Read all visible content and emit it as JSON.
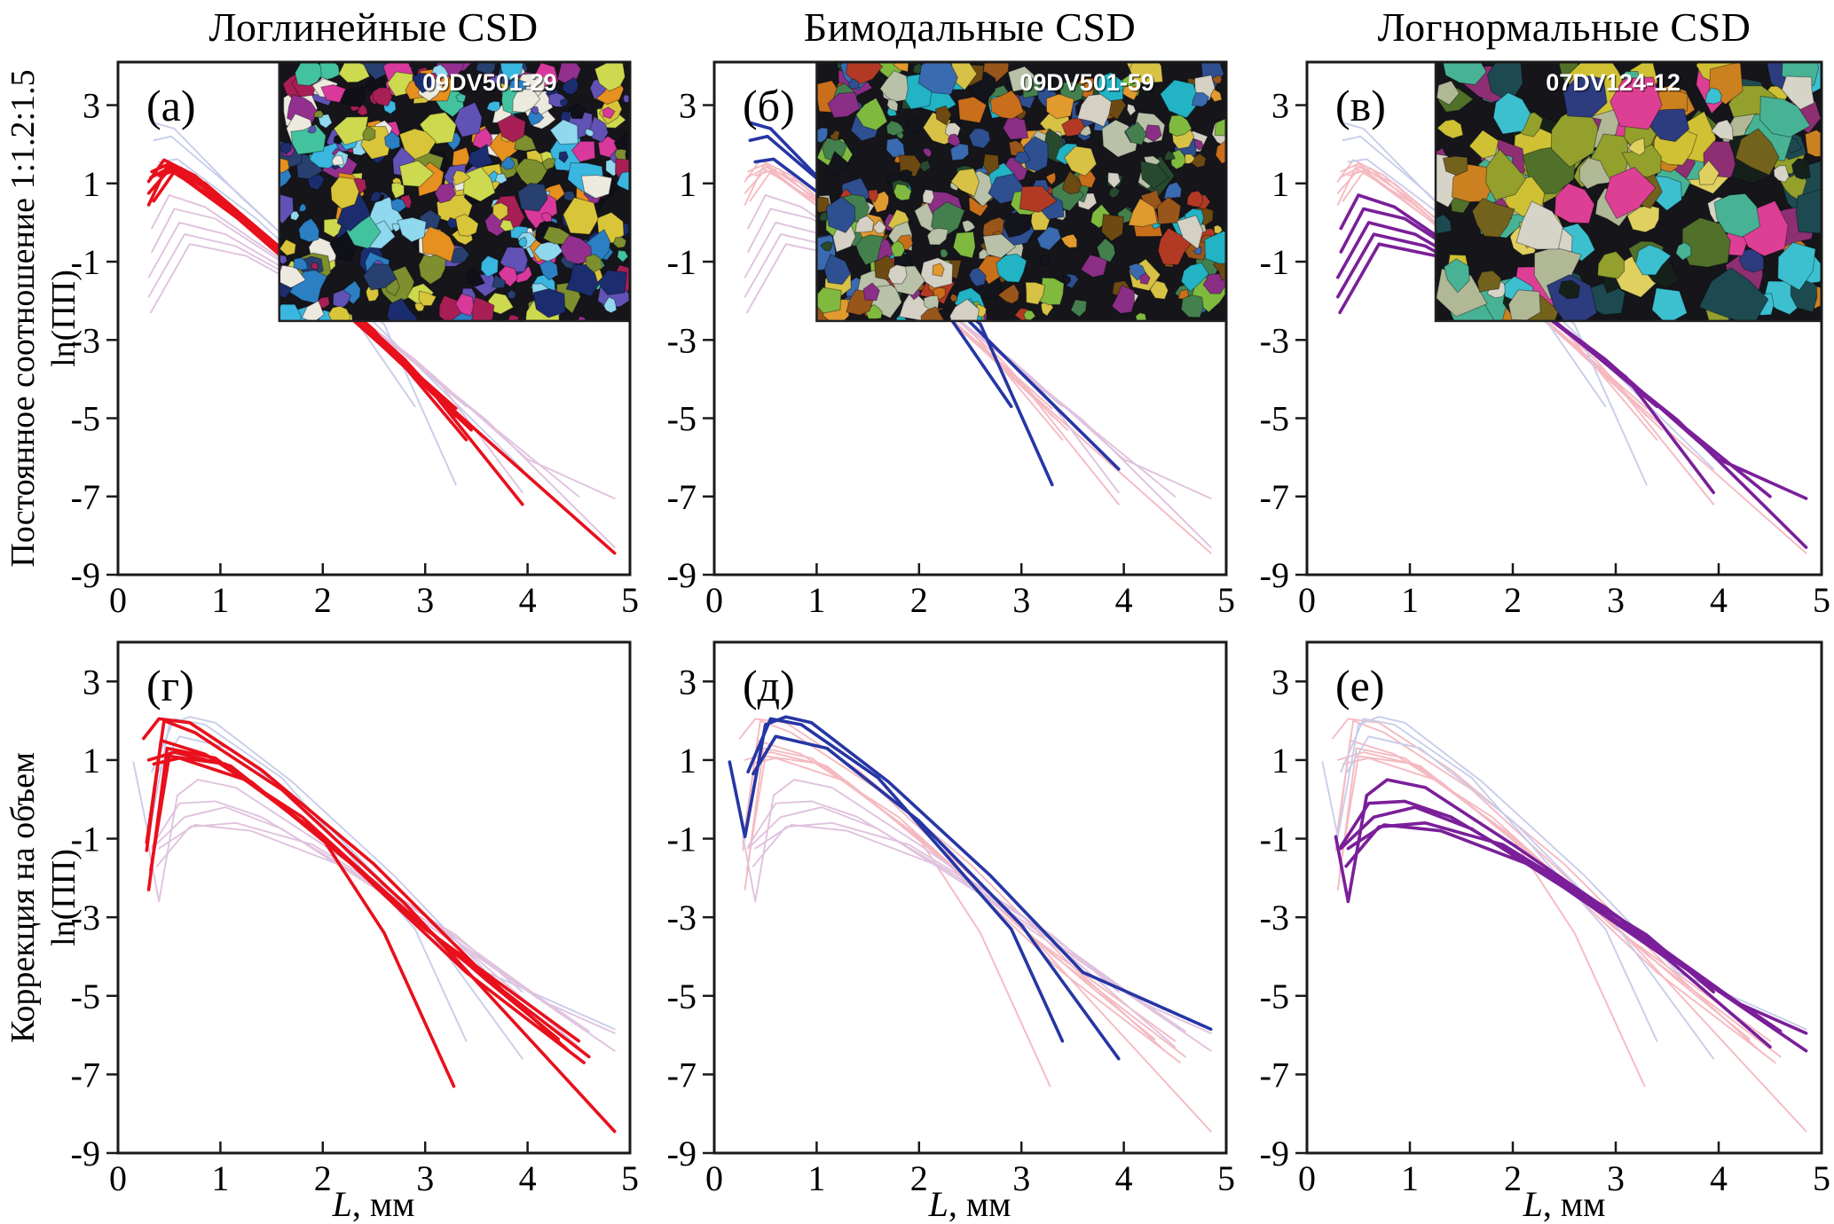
{
  "figure": {
    "column_titles": [
      "Логлинейные CSD",
      "Бимодальные CSD",
      "Логнормальные CSD"
    ],
    "row_labels": [
      "Постоянное соотношение 1:1.2:1.5",
      "Коррекция на объем"
    ],
    "ylabel": "ln(ПП)",
    "xlabel": "L, мм",
    "panel_letters": [
      "(а)",
      "(б)",
      "(в)",
      "(г)",
      "(д)",
      "(е)"
    ],
    "inset_labels": [
      "09DV501-29",
      "09DV501-59",
      "07DV124-12"
    ]
  },
  "colors": {
    "background": "#ffffff",
    "axis": "#1a1a1a",
    "bold": {
      "loglinear": "#e8101c",
      "bimodal": "#2636a4",
      "lognormal": "#7a1f99"
    },
    "faint": {
      "loglinear": "#f5bac1",
      "bimodal": "#c8cdea",
      "lognormal": "#e0c2de"
    },
    "inset_label": "#ffffff",
    "inset_background": "#15151a"
  },
  "chart_data": {
    "type": "line",
    "xlabel": "L, мм",
    "ylabel": "ln(ПП)",
    "xlim": [
      0,
      5
    ],
    "ylim": [
      -9,
      4.1
    ],
    "xticks": [
      0,
      1,
      2,
      3,
      4,
      5
    ],
    "yticks": [
      3,
      1,
      -1,
      -3,
      -5,
      -7,
      -9
    ],
    "grid": false,
    "legend": "none",
    "rows": [
      {
        "name": "Постоянное соотношение 1:1.2:1.5",
        "series": {
          "loglinear": [
            [
              [
                0.3,
                1.05
              ],
              [
                0.45,
                1.6
              ],
              [
                0.75,
                1.2
              ],
              [
                1.5,
                -0.45
              ],
              [
                2.5,
                -2.75
              ],
              [
                3.4,
                -5.55
              ]
            ],
            [
              [
                0.3,
                0.45
              ],
              [
                0.48,
                1.45
              ],
              [
                0.85,
                1.0
              ],
              [
                1.7,
                -0.9
              ],
              [
                2.8,
                -3.5
              ],
              [
                3.3,
                -4.95
              ]
            ],
            [
              [
                0.33,
                1.3
              ],
              [
                0.5,
                1.5
              ],
              [
                0.95,
                0.7
              ],
              [
                2.0,
                -1.75
              ],
              [
                3.0,
                -4.1
              ],
              [
                3.95,
                -7.2
              ]
            ],
            [
              [
                0.3,
                0.75
              ],
              [
                0.5,
                1.35
              ],
              [
                1.05,
                0.45
              ],
              [
                2.2,
                -2.2
              ],
              [
                3.3,
                -4.75
              ]
            ],
            [
              [
                0.32,
                1.15
              ],
              [
                0.52,
                1.42
              ],
              [
                1.15,
                0.15
              ],
              [
                2.4,
                -2.7
              ],
              [
                3.45,
                -5.3
              ]
            ],
            [
              [
                0.35,
                0.55
              ],
              [
                0.55,
                1.3
              ],
              [
                1.25,
                -0.05
              ],
              [
                2.6,
                -3.2
              ],
              [
                3.35,
                -5.05
              ]
            ],
            [
              [
                0.4,
                1.2
              ],
              [
                0.62,
                1.38
              ],
              [
                1.5,
                -0.55
              ],
              [
                3.0,
                -4.15
              ],
              [
                4.85,
                -8.45
              ]
            ]
          ],
          "bimodal": [
            [
              [
                0.35,
                2.55
              ],
              [
                0.55,
                2.4
              ],
              [
                1.2,
                0.65
              ],
              [
                2.0,
                -1.25
              ],
              [
                3.0,
                -3.85
              ],
              [
                3.95,
                -6.3
              ]
            ],
            [
              [
                0.35,
                2.1
              ],
              [
                0.52,
                2.2
              ],
              [
                1.15,
                0.8
              ],
              [
                1.95,
                -1.15
              ],
              [
                2.6,
                -2.6
              ],
              [
                3.3,
                -6.7
              ]
            ],
            [
              [
                0.4,
                1.55
              ],
              [
                0.58,
                1.62
              ],
              [
                1.35,
                0.1
              ],
              [
                2.15,
                -1.85
              ],
              [
                2.9,
                -4.7
              ]
            ]
          ],
          "lognormal": [
            [
              [
                0.33,
                -0.15
              ],
              [
                0.5,
                0.7
              ],
              [
                0.85,
                0.4
              ],
              [
                1.6,
                -0.95
              ],
              [
                2.6,
                -2.95
              ],
              [
                3.6,
                -5.05
              ],
              [
                4.85,
                -8.3
              ]
            ],
            [
              [
                0.33,
                -0.75
              ],
              [
                0.55,
                0.35
              ],
              [
                0.95,
                0.1
              ],
              [
                1.8,
                -1.35
              ],
              [
                2.9,
                -3.5
              ],
              [
                4.0,
                -6.05
              ],
              [
                4.85,
                -7.05
              ]
            ],
            [
              [
                0.3,
                -1.4
              ],
              [
                0.6,
                0.0
              ],
              [
                1.05,
                -0.3
              ],
              [
                2.0,
                -1.75
              ],
              [
                3.1,
                -3.95
              ],
              [
                3.95,
                -6.9
              ]
            ],
            [
              [
                0.3,
                -1.9
              ],
              [
                0.65,
                -0.3
              ],
              [
                1.15,
                -0.6
              ],
              [
                2.2,
                -2.1
              ],
              [
                3.3,
                -4.45
              ],
              [
                4.5,
                -7.0
              ]
            ],
            [
              [
                0.32,
                -2.3
              ],
              [
                0.7,
                -0.55
              ],
              [
                1.25,
                -0.85
              ],
              [
                2.4,
                -2.5
              ],
              [
                3.4,
                -4.7
              ]
            ]
          ]
        }
      },
      {
        "name": "Коррекция на объем",
        "series": {
          "loglinear": [
            [
              [
                0.25,
                1.55
              ],
              [
                0.4,
                2.05
              ],
              [
                0.7,
                1.95
              ],
              [
                1.4,
                0.75
              ],
              [
                2.5,
                -1.65
              ],
              [
                3.5,
                -4.25
              ],
              [
                4.4,
                -6.4
              ]
            ],
            [
              [
                0.28,
                -1.1
              ],
              [
                0.45,
                2.0
              ],
              [
                0.75,
                1.7
              ],
              [
                1.6,
                0.25
              ],
              [
                2.8,
                -2.65
              ],
              [
                4.85,
                -8.45
              ]
            ],
            [
              [
                0.28,
                -1.3
              ],
              [
                0.42,
                1.5
              ],
              [
                0.85,
                1.15
              ],
              [
                1.8,
                -0.45
              ],
              [
                3.0,
                -3.3
              ],
              [
                4.5,
                -6.15
              ]
            ],
            [
              [
                0.3,
                -2.3
              ],
              [
                0.48,
                1.3
              ],
              [
                0.95,
                1.05
              ],
              [
                2.0,
                -0.95
              ],
              [
                3.3,
                -3.95
              ],
              [
                4.6,
                -6.55
              ]
            ],
            [
              [
                0.3,
                1.0
              ],
              [
                0.55,
                1.2
              ],
              [
                1.1,
                0.85
              ],
              [
                2.0,
                -1.0
              ],
              [
                2.6,
                -3.4
              ],
              [
                3.28,
                -7.3
              ]
            ],
            [
              [
                0.32,
                -1.8
              ],
              [
                0.5,
                1.1
              ],
              [
                1.05,
                0.9
              ],
              [
                2.1,
                -1.2
              ],
              [
                3.4,
                -4.4
              ],
              [
                4.55,
                -6.7
              ]
            ],
            [
              [
                0.35,
                0.9
              ],
              [
                0.6,
                1.05
              ],
              [
                1.3,
                0.45
              ],
              [
                2.4,
                -1.9
              ],
              [
                3.6,
                -4.6
              ],
              [
                4.3,
                -6.1
              ]
            ]
          ],
          "bimodal": [
            [
              [
                0.15,
                0.95
              ],
              [
                0.3,
                -0.95
              ],
              [
                0.5,
                1.9
              ],
              [
                0.7,
                2.1
              ],
              [
                0.95,
                1.95
              ],
              [
                1.7,
                0.45
              ],
              [
                2.7,
                -1.95
              ],
              [
                3.6,
                -4.4
              ],
              [
                4.85,
                -5.85
              ]
            ],
            [
              [
                0.33,
                0.7
              ],
              [
                0.55,
                2.05
              ],
              [
                0.85,
                1.9
              ],
              [
                1.6,
                0.55
              ],
              [
                2.9,
                -3.3
              ],
              [
                3.4,
                -6.15
              ]
            ],
            [
              [
                0.38,
                0.65
              ],
              [
                0.6,
                1.6
              ],
              [
                1.1,
                1.3
              ],
              [
                2.0,
                -0.55
              ],
              [
                3.0,
                -3.2
              ],
              [
                3.95,
                -6.6
              ]
            ]
          ],
          "lognormal": [
            [
              [
                0.28,
                -0.95
              ],
              [
                0.4,
                -2.6
              ],
              [
                0.58,
                0.1
              ],
              [
                0.78,
                0.5
              ],
              [
                1.15,
                0.3
              ],
              [
                2.0,
                -1.15
              ],
              [
                3.0,
                -2.95
              ],
              [
                4.2,
                -5.2
              ],
              [
                4.85,
                -5.95
              ]
            ],
            [
              [
                0.33,
                -1.2
              ],
              [
                0.6,
                -0.1
              ],
              [
                0.95,
                -0.05
              ],
              [
                1.4,
                -0.45
              ],
              [
                2.3,
                -1.85
              ],
              [
                3.3,
                -3.6
              ],
              [
                4.6,
                -5.9
              ]
            ],
            [
              [
                0.33,
                -1.25
              ],
              [
                0.65,
                -0.45
              ],
              [
                1.05,
                -0.2
              ],
              [
                1.6,
                -0.75
              ],
              [
                2.5,
                -2.25
              ],
              [
                3.5,
                -4.05
              ],
              [
                4.5,
                -6.3
              ]
            ],
            [
              [
                0.38,
                -1.7
              ],
              [
                0.7,
                -0.7
              ],
              [
                1.15,
                -0.6
              ],
              [
                1.9,
                -1.15
              ],
              [
                2.9,
                -2.75
              ],
              [
                3.45,
                -3.9
              ],
              [
                4.85,
                -6.4
              ]
            ],
            [
              [
                0.4,
                -1.25
              ],
              [
                0.75,
                -0.65
              ],
              [
                1.3,
                -0.8
              ],
              [
                2.2,
                -1.7
              ],
              [
                3.3,
                -3.45
              ],
              [
                3.95,
                -4.9
              ]
            ]
          ]
        }
      }
    ],
    "panels": [
      {
        "letter": "(а)",
        "row": 0,
        "col": 0,
        "bold_group": "loglinear",
        "inset_label": "09DV501-29"
      },
      {
        "letter": "(б)",
        "row": 0,
        "col": 1,
        "bold_group": "bimodal",
        "inset_label": "09DV501-59"
      },
      {
        "letter": "(в)",
        "row": 0,
        "col": 2,
        "bold_group": "lognormal",
        "inset_label": "07DV124-12"
      },
      {
        "letter": "(г)",
        "row": 1,
        "col": 0,
        "bold_group": "loglinear"
      },
      {
        "letter": "(д)",
        "row": 1,
        "col": 1,
        "bold_group": "bimodal"
      },
      {
        "letter": "(е)",
        "row": 1,
        "col": 2,
        "bold_group": "lognormal"
      }
    ],
    "inset_palettes": [
      [
        "#3ab7e0",
        "#2b7fc2",
        "#8fd8ee",
        "#1b2d6e",
        "#d8399b",
        "#93308f",
        "#cdd94e",
        "#7d8f2e",
        "#e6901f",
        "#101018",
        "#ece9df",
        "#43c2a0",
        "#6152b5",
        "#a81f55",
        "#27406f",
        "#d9c53a"
      ],
      [
        "#c96f1b",
        "#99561b",
        "#44804e",
        "#7fba3f",
        "#2e4f90",
        "#22b3c4",
        "#d8c246",
        "#14141c",
        "#8a2f85",
        "#b9c2a8",
        "#b23a24",
        "#e09a2e",
        "#274a2e",
        "#6d4a12",
        "#d4d0c4",
        "#3a6ab0"
      ],
      [
        "#cfc133",
        "#93a02c",
        "#47b394",
        "#2c3c7e",
        "#73621c",
        "#d6d4c6",
        "#16201a",
        "#cc8120",
        "#3cc0cf",
        "#8f2f73",
        "#51702a",
        "#e0d060",
        "#1d4a50",
        "#b0b896",
        "#dd3f94"
      ]
    ]
  }
}
